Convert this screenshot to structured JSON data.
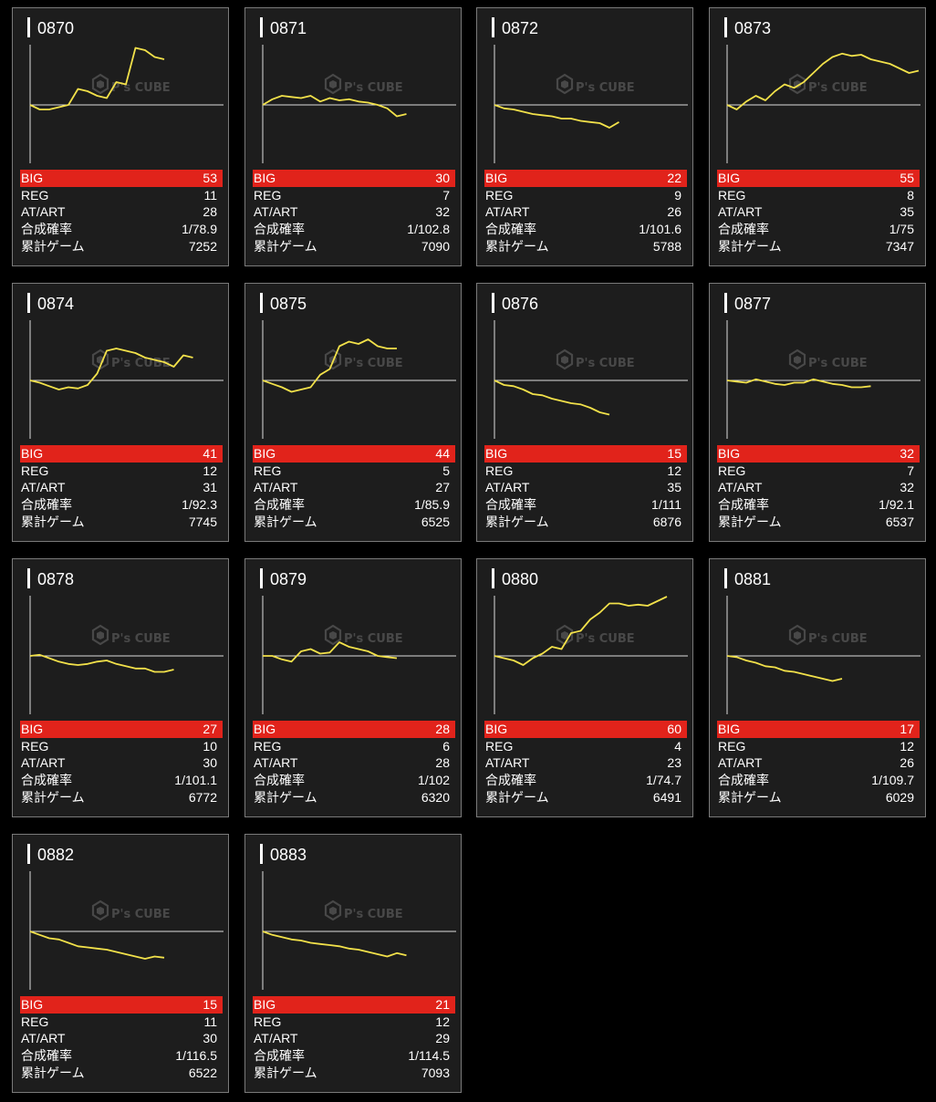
{
  "colors": {
    "background": "#000000",
    "card_background": "#1d1d1d",
    "card_border": "#7a7a7a",
    "big_highlight": "#e1231b",
    "graph_line": "#f2e14a",
    "axis": "#dddddd",
    "text": "#ffffff"
  },
  "labels": {
    "big": "BIG",
    "reg": "REG",
    "at_art": "AT/ART",
    "combined_prob": "合成確率",
    "total_games": "累計ゲーム"
  },
  "watermark": {
    "brand": "P's CUBE",
    "icon": "cube-logo-icon"
  },
  "machines": [
    {
      "number": "0870",
      "big": "53",
      "reg": "11",
      "at_art": "28",
      "combined_prob": "1/78.9",
      "total_games": "7252",
      "trend": [
        0,
        -4,
        -4,
        -2,
        0,
        14,
        12,
        8,
        6,
        20,
        18,
        50,
        48,
        42,
        40
      ]
    },
    {
      "number": "0871",
      "big": "30",
      "reg": "7",
      "at_art": "32",
      "combined_prob": "1/102.8",
      "total_games": "7090",
      "trend": [
        0,
        5,
        8,
        7,
        6,
        8,
        3,
        6,
        4,
        5,
        3,
        2,
        0,
        -3,
        -10,
        -8
      ]
    },
    {
      "number": "0872",
      "big": "22",
      "reg": "9",
      "at_art": "26",
      "combined_prob": "1/101.6",
      "total_games": "5788",
      "trend": [
        0,
        -3,
        -4,
        -6,
        -8,
        -9,
        -10,
        -12,
        -12,
        -14,
        -15,
        -16,
        -20,
        -15
      ]
    },
    {
      "number": "0873",
      "big": "55",
      "reg": "8",
      "at_art": "35",
      "combined_prob": "1/75",
      "total_games": "7347",
      "trend": [
        0,
        -4,
        3,
        8,
        4,
        12,
        18,
        15,
        20,
        28,
        36,
        42,
        45,
        43,
        44,
        40,
        38,
        36,
        32,
        28,
        30
      ]
    },
    {
      "number": "0874",
      "big": "41",
      "reg": "12",
      "at_art": "31",
      "combined_prob": "1/92.3",
      "total_games": "7745",
      "trend": [
        0,
        -2,
        -5,
        -8,
        -6,
        -7,
        -4,
        6,
        26,
        28,
        26,
        24,
        20,
        18,
        16,
        12,
        22,
        20
      ]
    },
    {
      "number": "0875",
      "big": "44",
      "reg": "5",
      "at_art": "27",
      "combined_prob": "1/85.9",
      "total_games": "6525",
      "trend": [
        0,
        -3,
        -6,
        -10,
        -8,
        -6,
        5,
        10,
        30,
        34,
        32,
        36,
        30,
        28,
        28
      ]
    },
    {
      "number": "0876",
      "big": "15",
      "reg": "12",
      "at_art": "35",
      "combined_prob": "1/111",
      "total_games": "6876",
      "trend": [
        0,
        -4,
        -5,
        -8,
        -12,
        -13,
        -16,
        -18,
        -20,
        -21,
        -24,
        -28,
        -30
      ]
    },
    {
      "number": "0877",
      "big": "32",
      "reg": "7",
      "at_art": "32",
      "combined_prob": "1/92.1",
      "total_games": "6537",
      "trend": [
        0,
        -1,
        -2,
        1,
        -1,
        -3,
        -4,
        -2,
        -2,
        1,
        -1,
        -3,
        -4,
        -6,
        -6,
        -5
      ]
    },
    {
      "number": "0878",
      "big": "27",
      "reg": "10",
      "at_art": "30",
      "combined_prob": "1/101.1",
      "total_games": "6772",
      "trend": [
        0,
        1,
        -2,
        -5,
        -7,
        -8,
        -7,
        -5,
        -4,
        -7,
        -9,
        -11,
        -11,
        -14,
        -14,
        -12
      ]
    },
    {
      "number": "0879",
      "big": "28",
      "reg": "6",
      "at_art": "28",
      "combined_prob": "1/102",
      "total_games": "6320",
      "trend": [
        0,
        0,
        -3,
        -5,
        4,
        6,
        2,
        3,
        12,
        8,
        6,
        4,
        0,
        -1,
        -2
      ]
    },
    {
      "number": "0880",
      "big": "60",
      "reg": "4",
      "at_art": "23",
      "combined_prob": "1/74.7",
      "total_games": "6491",
      "trend": [
        0,
        -2,
        -4,
        -8,
        -2,
        2,
        8,
        6,
        20,
        22,
        32,
        38,
        46,
        46,
        44,
        45,
        44,
        48,
        52
      ]
    },
    {
      "number": "0881",
      "big": "17",
      "reg": "12",
      "at_art": "26",
      "combined_prob": "1/109.7",
      "total_games": "6029",
      "trend": [
        0,
        -1,
        -4,
        -6,
        -9,
        -10,
        -13,
        -14,
        -16,
        -18,
        -20,
        -22,
        -20
      ]
    },
    {
      "number": "0882",
      "big": "15",
      "reg": "11",
      "at_art": "30",
      "combined_prob": "1/116.5",
      "total_games": "6522",
      "trend": [
        0,
        -3,
        -6,
        -7,
        -10,
        -13,
        -14,
        -15,
        -16,
        -18,
        -20,
        -22,
        -24,
        -22,
        -23
      ]
    },
    {
      "number": "0883",
      "big": "21",
      "reg": "12",
      "at_art": "29",
      "combined_prob": "1/114.5",
      "total_games": "7093",
      "trend": [
        0,
        -3,
        -5,
        -7,
        -8,
        -10,
        -11,
        -12,
        -13,
        -15,
        -16,
        -18,
        -20,
        -22,
        -19,
        -21
      ]
    }
  ]
}
